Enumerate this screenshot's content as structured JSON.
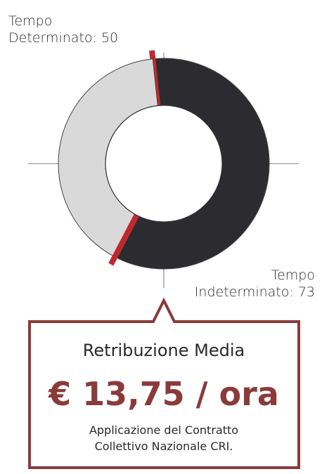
{
  "chart_data": {
    "type": "donut",
    "categories": [
      "Tempo Determinato:",
      "Tempo Indeterminato:"
    ],
    "values": [
      50,
      73
    ],
    "colors": [
      "#d9d9d9",
      "#2b2b30"
    ]
  },
  "box": {
    "title": "Retribuzione Media",
    "highlight": "€ 13,75 / ora",
    "note": [
      "Applicazione del Contratto",
      "Collettivo Nazionale CRI."
    ]
  }
}
